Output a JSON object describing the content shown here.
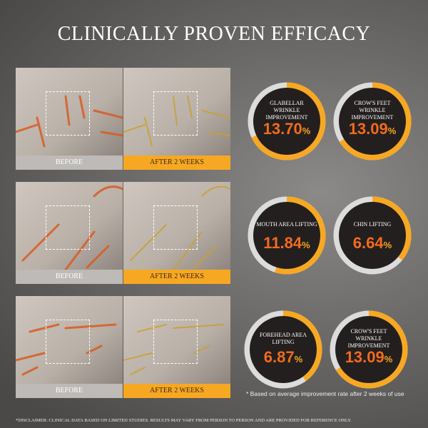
{
  "title": "CLINICALLY PROVEN EFFICACY",
  "rows": [
    {
      "before_label": "BEFORE",
      "after_label": "AFTER 2 WEEKS"
    },
    {
      "before_label": "BEFORE",
      "after_label": "AFTER 2 WEEKS"
    },
    {
      "before_label": "BEFORE",
      "after_label": "AFTER 2 WEEKS"
    }
  ],
  "metrics": [
    {
      "caption": "GLABELLAR WRINKLE IMPROVEMENT",
      "value": "13.70",
      "unit": "%",
      "ring_fill": 0.68
    },
    {
      "caption": "CROW'S FEET WRINKLE IMPROVEMENT",
      "value": "13.09",
      "unit": "%",
      "ring_fill": 0.66
    },
    {
      "caption": "MOUTH AREA LIFTING",
      "value": "11.84",
      "unit": "%",
      "ring_fill": 0.55
    },
    {
      "caption": "CHIN LIFTING",
      "value": "6.64",
      "unit": "%",
      "ring_fill": 0.36
    },
    {
      "caption": "FOREHEAD AREA LIFTING",
      "value": "6.87",
      "unit": "%",
      "ring_fill": 0.4
    },
    {
      "caption": "CROW'S FEET WRINKLE IMPROVEMENT",
      "value": "13.09",
      "unit": "%",
      "ring_fill": 0.66
    }
  ],
  "colors": {
    "accent": "#f7a823",
    "value": "#f26b1d",
    "ring_track": "#dcdcdc",
    "circle": "#231f1e"
  },
  "footnote": "* Based on average improvement rate after 2 weeks of use",
  "disclaimer": "*DISCLAIMER: CLINICAL DATA BASED ON LIMITED STUDIES. RESULTS MAY VARY FROM PERSON TO PERSON AND ARE PROVIDED FOR REFERENCE ONLY."
}
